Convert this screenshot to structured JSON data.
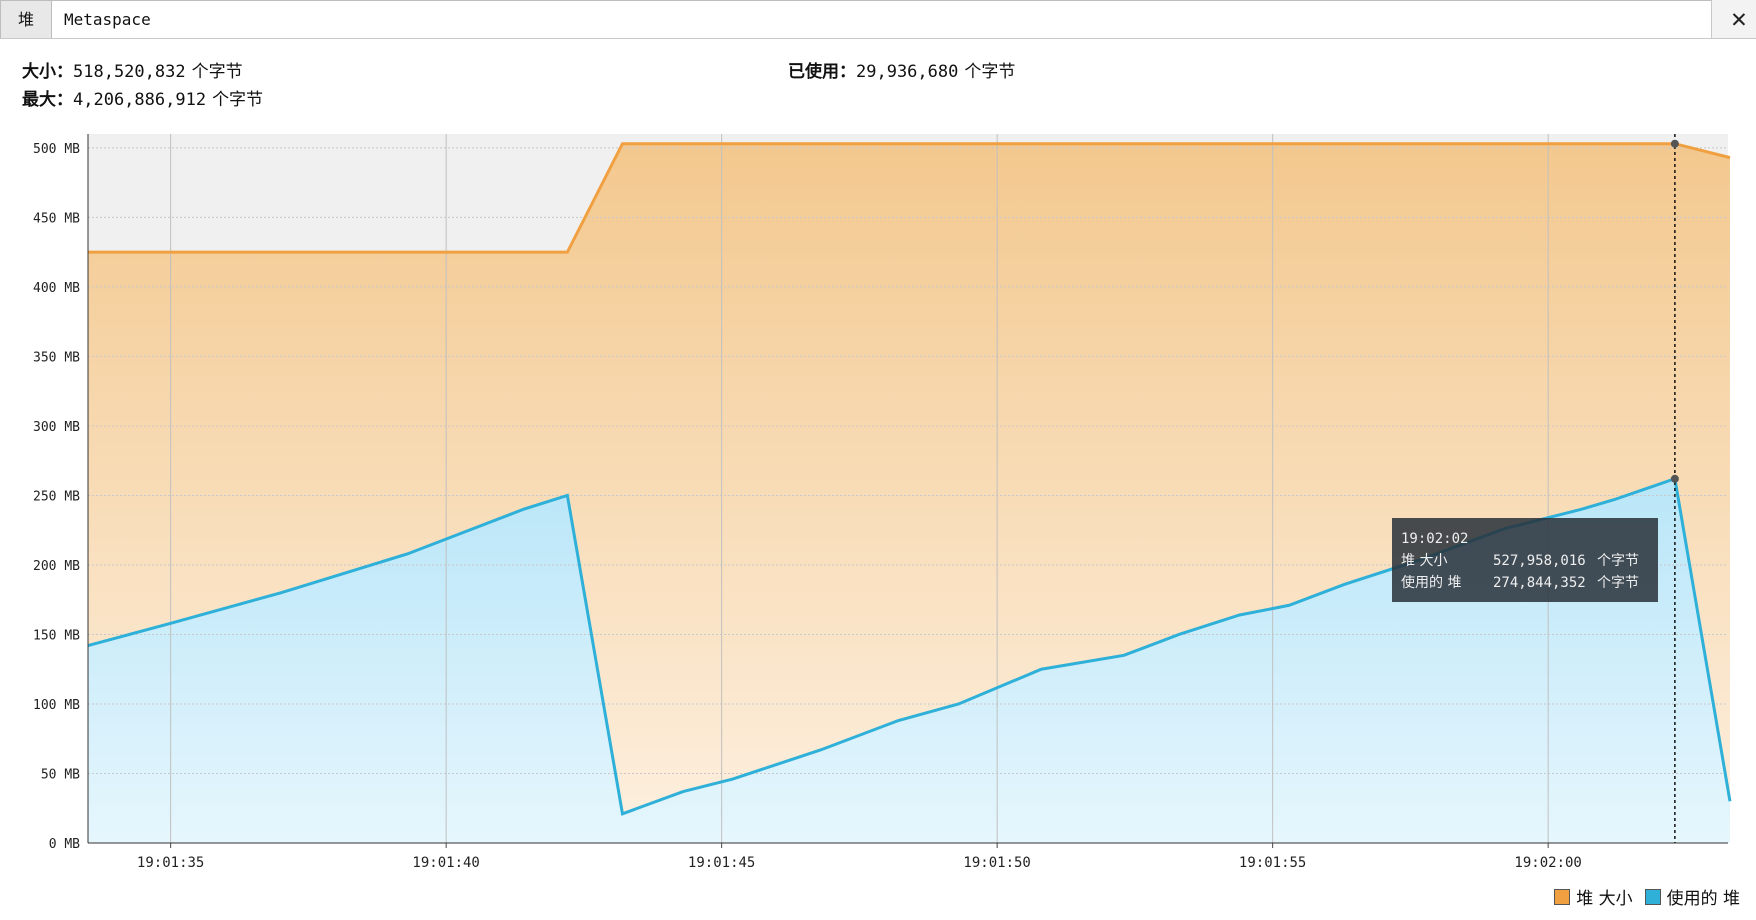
{
  "tabs": [
    {
      "label": "堆",
      "active": true
    },
    {
      "label": "Metaspace",
      "active": false
    }
  ],
  "close_glyph": "✕",
  "stats": {
    "size_label": "大小：",
    "size_value": "518,520,832",
    "max_label": "最大：",
    "max_value": "4,206,886,912",
    "used_label": "已使用：",
    "used_value": "29,936,680",
    "unit": "个字节"
  },
  "tooltip": {
    "time": "19:02:02",
    "rows": [
      {
        "name": "堆 大小",
        "value": "527,958,016",
        "unit": "个字节"
      },
      {
        "name": "使用的 堆",
        "value": "274,844,352",
        "unit": "个字节"
      }
    ]
  },
  "chart_data": {
    "type": "area",
    "ylim": [
      0,
      500
    ],
    "yticks": [
      0,
      50,
      100,
      150,
      200,
      250,
      300,
      350,
      400,
      450,
      500
    ],
    "ytick_unit": "MB",
    "xticks": [
      "19:01:35",
      "19:01:40",
      "19:01:45",
      "19:01:50",
      "19:01:55",
      "19:02:00"
    ],
    "xlim_seconds_label_start": "19:01:33.5",
    "grid": true,
    "legend_position": "bottom-right",
    "cursor_time": "19:02:02",
    "series": [
      {
        "name": "堆 大小",
        "color": "#f0a040",
        "points": [
          [
            "19:01:33.5",
            425
          ],
          [
            "19:01:42.2",
            425
          ],
          [
            "19:01:43.2",
            503
          ],
          [
            "19:02:02.3",
            503
          ],
          [
            "19:02:03.3",
            493
          ]
        ]
      },
      {
        "name": "使用的 堆",
        "color": "#2fb0d8",
        "points": [
          [
            "19:01:33.5",
            142
          ],
          [
            "19:01:35.0",
            158
          ],
          [
            "19:01:37.0",
            180
          ],
          [
            "19:01:39.3",
            208
          ],
          [
            "19:01:41.4",
            240
          ],
          [
            "19:01:42.2",
            250
          ],
          [
            "19:01:43.2",
            21
          ],
          [
            "19:01:44.3",
            37
          ],
          [
            "19:01:45.2",
            46
          ],
          [
            "19:01:46.8",
            67
          ],
          [
            "19:01:48.2",
            88
          ],
          [
            "19:01:49.3",
            100
          ],
          [
            "19:01:50.8",
            125
          ],
          [
            "19:01:52.3",
            135
          ],
          [
            "19:01:53.3",
            150
          ],
          [
            "19:01:54.4",
            164
          ],
          [
            "19:01:55.3",
            171
          ],
          [
            "19:01:56.3",
            186
          ],
          [
            "19:01:57.7",
            204
          ],
          [
            "19:01:59.2",
            226
          ],
          [
            "19:02:00.6",
            240
          ],
          [
            "19:02:01.2",
            247
          ],
          [
            "19:02:02.3",
            262
          ],
          [
            "19:02:03.3",
            30
          ]
        ]
      }
    ]
  }
}
